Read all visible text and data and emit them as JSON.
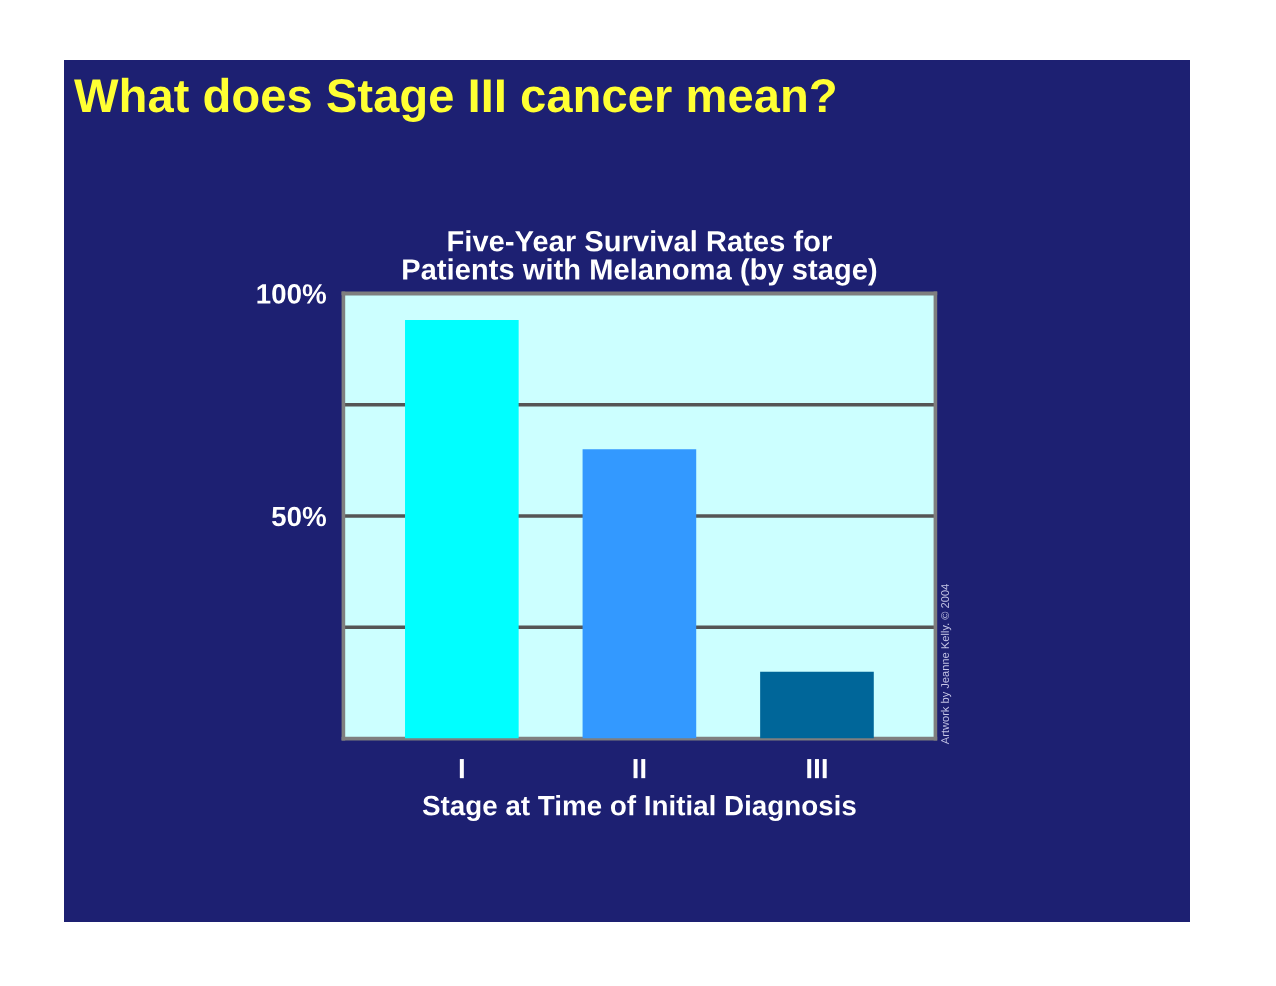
{
  "chart_data": {
    "type": "bar",
    "title": "What does Stage III cancer mean?",
    "subtitle": "Five-Year Survival Rates for\nPatients with Melanoma (by stage)",
    "xlabel": "Stage at Time of Initial Diagnosis",
    "categories": [
      "I",
      "II",
      "III"
    ],
    "values": [
      94,
      65,
      15
    ],
    "colors": [
      "#00ffff",
      "#3399ff",
      "#006699"
    ],
    "ylim": [
      0,
      100
    ],
    "yticks": [
      {
        "value": 25,
        "label": null
      },
      {
        "value": 50,
        "label": "50%"
      },
      {
        "value": 75,
        "label": null
      },
      {
        "value": 100,
        "label": "100%"
      }
    ],
    "grid": "y",
    "annotations": [
      "Artwork by Jeanne Kelly. © 2004"
    ]
  }
}
